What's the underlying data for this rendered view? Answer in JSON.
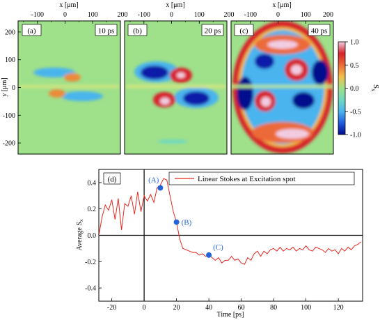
{
  "chart_data": [
    {
      "type": "heatmap",
      "panels": [
        {
          "label": "(a)",
          "time_label": "10 ps"
        },
        {
          "label": "(b)",
          "time_label": "20 ps"
        },
        {
          "label": "(c)",
          "time_label": "40 ps"
        }
      ],
      "xlabel": "x [μm]",
      "ylabel": "y [μm]",
      "x_ticks": [
        "-100",
        "0",
        "100",
        "200"
      ],
      "y_ticks": [
        "200",
        "100",
        "0",
        "-100",
        "-200"
      ],
      "xlim": [
        -170,
        200
      ],
      "ylim": [
        -240,
        240
      ],
      "colorbar": {
        "label": "Sx",
        "label_main": "S",
        "label_sub": "x",
        "ticks": [
          "1.0",
          "0.5",
          "0.0",
          "-0.5",
          "-1.0"
        ],
        "range": [
          -1.0,
          1.0
        ],
        "colors": [
          "#000a8c",
          "#1f5be0",
          "#4ab4ee",
          "#6fd9c0",
          "#9fe08a",
          "#f2c04a",
          "#ec6a38",
          "#d8222a",
          "#f2cde2"
        ]
      },
      "background_color": "#9fe08a"
    },
    {
      "type": "line",
      "panel_label": "(d)",
      "xlabel": "Time [ps]",
      "ylabel": "Average S",
      "ylabel_sub": "x",
      "x_ticks": [
        "-20",
        "0",
        "20",
        "40",
        "60",
        "80",
        "100",
        "120"
      ],
      "y_ticks": [
        "0.4",
        "0.2",
        "0.0",
        "-0.2",
        "-0.4"
      ],
      "xlim": [
        -28,
        135
      ],
      "ylim": [
        -0.5,
        0.5
      ],
      "series": [
        {
          "name": "Linear Stokes at Excitation spot",
          "color": "#e8261e",
          "x": [
            -28,
            -26,
            -24,
            -22,
            -20,
            -18,
            -16,
            -14,
            -12,
            -10,
            -8,
            -6,
            -4,
            -2,
            0,
            2,
            4,
            6,
            8,
            10,
            12,
            14,
            16,
            18,
            20,
            22,
            24,
            26,
            28,
            30,
            32,
            34,
            36,
            38,
            40,
            42,
            44,
            46,
            48,
            50,
            52,
            54,
            56,
            58,
            60,
            62,
            64,
            66,
            68,
            70,
            72,
            74,
            76,
            78,
            80,
            82,
            84,
            86,
            88,
            90,
            92,
            94,
            96,
            98,
            100,
            102,
            104,
            106,
            108,
            110,
            112,
            114,
            116,
            118,
            120,
            122,
            124,
            126,
            128,
            130,
            132,
            134
          ],
          "y": [
            0.0,
            0.14,
            0.23,
            0.19,
            0.27,
            0.12,
            0.28,
            0.04,
            0.24,
            0.22,
            0.3,
            0.16,
            0.33,
            0.18,
            0.3,
            0.26,
            0.31,
            0.25,
            0.36,
            0.38,
            0.43,
            0.42,
            0.3,
            0.18,
            0.1,
            -0.03,
            -0.1,
            -0.11,
            -0.12,
            -0.13,
            -0.13,
            -0.15,
            -0.14,
            -0.16,
            -0.15,
            -0.17,
            -0.19,
            -0.17,
            -0.21,
            -0.19,
            -0.19,
            -0.16,
            -0.19,
            -0.18,
            -0.21,
            -0.22,
            -0.17,
            -0.19,
            -0.14,
            -0.12,
            -0.16,
            -0.12,
            -0.14,
            -0.11,
            -0.1,
            -0.12,
            -0.09,
            -0.12,
            -0.1,
            -0.11,
            -0.09,
            -0.12,
            -0.1,
            -0.11,
            -0.08,
            -0.11,
            -0.12,
            -0.09,
            -0.1,
            -0.11,
            -0.13,
            -0.1,
            -0.12,
            -0.11,
            -0.14,
            -0.1,
            -0.12,
            -0.09,
            -0.11,
            -0.08,
            -0.07,
            -0.05
          ]
        }
      ],
      "markers": [
        {
          "label": "(A)",
          "x": 10,
          "y": 0.36
        },
        {
          "label": "(B)",
          "x": 20,
          "y": 0.1
        },
        {
          "label": "(C)",
          "x": 40,
          "y": -0.15
        }
      ],
      "marker_color": "#2563d8",
      "legend_position": "top-right"
    }
  ]
}
